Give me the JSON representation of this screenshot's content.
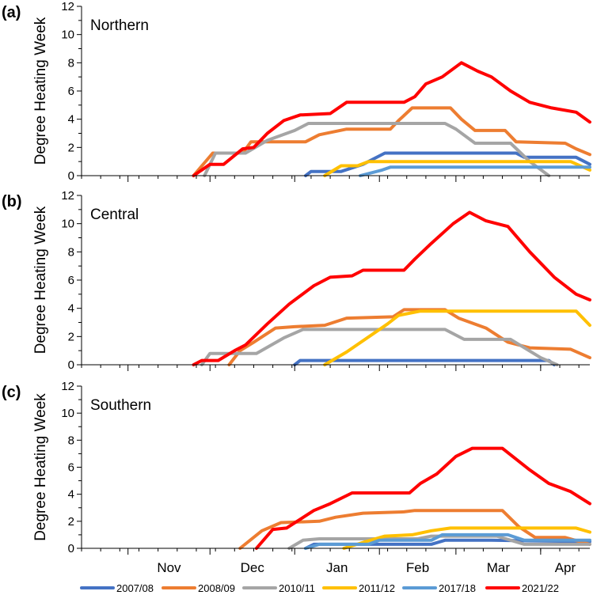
{
  "legend": [
    {
      "name": "2007/08",
      "color": "#4472C4"
    },
    {
      "name": "2008/09",
      "color": "#ED7D31"
    },
    {
      "name": "2010/11",
      "color": "#A5A5A5"
    },
    {
      "name": "2011/12",
      "color": "#FFC000"
    },
    {
      "name": "2017/18",
      "color": "#5B9BD5"
    },
    {
      "name": "2021/22",
      "color": "#FF0000"
    }
  ],
  "x_month_labels": [
    "Nov",
    "Dec",
    "Jan",
    "Feb",
    "Mar",
    "Apr"
  ],
  "chart_data": [
    {
      "type": "line",
      "panel_letter": "(a)",
      "region": "Northern",
      "ylabel": "Degree Heating Week",
      "ylim": [
        0,
        12
      ],
      "y_ticks": [
        0,
        2,
        4,
        6,
        8,
        10,
        12
      ],
      "x_range": [
        "Oct 15",
        "Apr 19"
      ],
      "series": [
        {
          "name": "2007/08",
          "color": "#4472C4",
          "points": [
            [
              "Jan 05",
              0
            ],
            [
              "Jan 07",
              0.3
            ],
            [
              "Jan 18",
              0.3
            ],
            [
              "Jan 26",
              0.8
            ],
            [
              "Feb 03",
              1.6
            ],
            [
              "Mar 23",
              1.6
            ],
            [
              "Mar 26",
              1.3
            ],
            [
              "Apr 14",
              1.3
            ],
            [
              "Apr 19",
              0.8
            ]
          ]
        },
        {
          "name": "2008/09",
          "color": "#ED7D31",
          "points": [
            [
              "Nov 25",
              0
            ],
            [
              "Dec 02",
              1.6
            ],
            [
              "Dec 13",
              1.6
            ],
            [
              "Dec 16",
              2.4
            ],
            [
              "Jan 05",
              2.4
            ],
            [
              "Jan 10",
              2.9
            ],
            [
              "Jan 20",
              3.3
            ],
            [
              "Feb 05",
              3.3
            ],
            [
              "Feb 08",
              3.9
            ],
            [
              "Feb 13",
              4.8
            ],
            [
              "Feb 27",
              4.8
            ],
            [
              "Mar 03",
              4.0
            ],
            [
              "Mar 08",
              3.2
            ],
            [
              "Mar 19",
              3.2
            ],
            [
              "Mar 23",
              2.4
            ],
            [
              "Apr 10",
              2.3
            ],
            [
              "Apr 14",
              1.9
            ],
            [
              "Apr 19",
              1.5
            ]
          ]
        },
        {
          "name": "2010/11",
          "color": "#A5A5A5",
          "points": [
            [
              "Nov 29",
              0
            ],
            [
              "Dec 03",
              1.6
            ],
            [
              "Dec 14",
              1.6
            ],
            [
              "Dec 22",
              2.5
            ],
            [
              "Jan 01",
              3.2
            ],
            [
              "Jan 06",
              3.7
            ],
            [
              "Feb 18",
              3.7
            ],
            [
              "Feb 25",
              3.7
            ],
            [
              "Mar 01",
              3.3
            ],
            [
              "Mar 08",
              2.3
            ],
            [
              "Mar 21",
              2.3
            ],
            [
              "Mar 28",
              1.0
            ],
            [
              "Apr 04",
              0
            ]
          ]
        },
        {
          "name": "2011/12",
          "color": "#FFC000",
          "points": [
            [
              "Jan 12",
              0
            ],
            [
              "Jan 18",
              0.7
            ],
            [
              "Jan 24",
              0.7
            ],
            [
              "Jan 28",
              1.0
            ],
            [
              "Apr 12",
              1.0
            ],
            [
              "Apr 19",
              0.4
            ]
          ]
        },
        {
          "name": "2017/18",
          "color": "#5B9BD5",
          "points": [
            [
              "Jan 25",
              0
            ],
            [
              "Feb 02",
              0.4
            ],
            [
              "Feb 05",
              0.6
            ],
            [
              "Apr 19",
              0.6
            ]
          ]
        },
        {
          "name": "2021/22",
          "color": "#FF0000",
          "points": [
            [
              "Nov 25",
              0
            ],
            [
              "Dec 01",
              0.8
            ],
            [
              "Dec 06",
              0.8
            ],
            [
              "Dec 13",
              1.9
            ],
            [
              "Dec 17",
              2.0
            ],
            [
              "Dec 22",
              3.0
            ],
            [
              "Dec 28",
              3.9
            ],
            [
              "Jan 03",
              4.3
            ],
            [
              "Jan 14",
              4.4
            ],
            [
              "Jan 20",
              5.2
            ],
            [
              "Feb 10",
              5.2
            ],
            [
              "Feb 14",
              5.6
            ],
            [
              "Feb 18",
              6.5
            ],
            [
              "Feb 24",
              7.0
            ],
            [
              "Mar 03",
              8.0
            ],
            [
              "Mar 09",
              7.4
            ],
            [
              "Mar 14",
              7.0
            ],
            [
              "Mar 21",
              6.0
            ],
            [
              "Mar 28",
              5.2
            ],
            [
              "Apr 05",
              4.8
            ],
            [
              "Apr 14",
              4.5
            ],
            [
              "Apr 19",
              3.8
            ]
          ]
        }
      ]
    },
    {
      "type": "line",
      "panel_letter": "(b)",
      "region": "Central",
      "ylabel": "Degree Heating Week",
      "ylim": [
        0,
        12
      ],
      "y_ticks": [
        0,
        2,
        4,
        6,
        8,
        10,
        12
      ],
      "x_range": [
        "Oct 15",
        "Apr 19"
      ],
      "series": [
        {
          "name": "2007/08",
          "color": "#4472C4",
          "points": [
            [
              "Jan 01",
              0
            ],
            [
              "Jan 03",
              0.3
            ],
            [
              "Apr 04",
              0.3
            ],
            [
              "Apr 06",
              0
            ]
          ]
        },
        {
          "name": "2008/09",
          "color": "#ED7D31",
          "points": [
            [
              "Dec 08",
              0
            ],
            [
              "Dec 12",
              1.0
            ],
            [
              "Dec 17",
              1.6
            ],
            [
              "Dec 25",
              2.6
            ],
            [
              "Jan 01",
              2.7
            ],
            [
              "Jan 12",
              2.8
            ],
            [
              "Jan 20",
              3.3
            ],
            [
              "Feb 06",
              3.4
            ],
            [
              "Feb 10",
              3.9
            ],
            [
              "Feb 25",
              3.9
            ],
            [
              "Mar 02",
              3.3
            ],
            [
              "Mar 12",
              2.6
            ],
            [
              "Mar 20",
              1.6
            ],
            [
              "Mar 28",
              1.2
            ],
            [
              "Apr 12",
              1.1
            ],
            [
              "Apr 19",
              0.5
            ]
          ]
        },
        {
          "name": "2010/11",
          "color": "#A5A5A5",
          "points": [
            [
              "Nov 28",
              0
            ],
            [
              "Dec 01",
              0.8
            ],
            [
              "Dec 18",
              0.8
            ],
            [
              "Dec 28",
              1.9
            ],
            [
              "Jan 04",
              2.5
            ],
            [
              "Feb 25",
              2.5
            ],
            [
              "Mar 04",
              1.8
            ],
            [
              "Mar 21",
              1.8
            ],
            [
              "Apr 01",
              0.5
            ],
            [
              "Apr 07",
              0
            ]
          ]
        },
        {
          "name": "2011/12",
          "color": "#FFC000",
          "points": [
            [
              "Jan 12",
              0
            ],
            [
              "Jan 20",
              0.9
            ],
            [
              "Feb 04",
              2.9
            ],
            [
              "Feb 08",
              3.5
            ],
            [
              "Feb 16",
              3.8
            ],
            [
              "Feb 27",
              3.8
            ],
            [
              "Apr 14",
              3.8
            ],
            [
              "Apr 19",
              2.8
            ]
          ]
        },
        {
          "name": "2021/22",
          "color": "#FF0000",
          "points": [
            [
              "Nov 25",
              0
            ],
            [
              "Nov 28",
              0.3
            ],
            [
              "Dec 04",
              0.3
            ],
            [
              "Dec 10",
              1.0
            ],
            [
              "Dec 14",
              1.4
            ],
            [
              "Dec 22",
              2.9
            ],
            [
              "Dec 30",
              4.3
            ],
            [
              "Jan 08",
              5.6
            ],
            [
              "Jan 14",
              6.2
            ],
            [
              "Jan 22",
              6.3
            ],
            [
              "Jan 26",
              6.7
            ],
            [
              "Feb 10",
              6.7
            ],
            [
              "Feb 14",
              7.5
            ],
            [
              "Feb 20",
              8.6
            ],
            [
              "Feb 28",
              10.0
            ],
            [
              "Mar 06",
              10.8
            ],
            [
              "Mar 12",
              10.2
            ],
            [
              "Mar 20",
              9.8
            ],
            [
              "Mar 28",
              8.0
            ],
            [
              "Apr 06",
              6.2
            ],
            [
              "Apr 14",
              5.0
            ],
            [
              "Apr 19",
              4.6
            ]
          ]
        }
      ]
    },
    {
      "type": "line",
      "panel_letter": "(c)",
      "region": "Southern",
      "ylabel": "Degree Heating Week",
      "ylim": [
        0,
        12
      ],
      "y_ticks": [
        0,
        2,
        4,
        6,
        8,
        10,
        12
      ],
      "x_range": [
        "Oct 15",
        "Apr 19"
      ],
      "series": [
        {
          "name": "2007/08",
          "color": "#4472C4",
          "points": [
            [
              "Jan 05",
              0
            ],
            [
              "Jan 08",
              0.3
            ],
            [
              "Feb 20",
              0.3
            ],
            [
              "Feb 25",
              0.6
            ],
            [
              "Mar 14",
              0.6
            ],
            [
              "Apr 19",
              0.5
            ]
          ]
        },
        {
          "name": "2008/09",
          "color": "#ED7D31",
          "points": [
            [
              "Dec 12",
              0
            ],
            [
              "Dec 20",
              1.3
            ],
            [
              "Dec 27",
              1.9
            ],
            [
              "Jan 10",
              2.0
            ],
            [
              "Jan 16",
              2.3
            ],
            [
              "Jan 26",
              2.6
            ],
            [
              "Feb 10",
              2.7
            ],
            [
              "Feb 14",
              2.8
            ],
            [
              "Mar 18",
              2.8
            ],
            [
              "Mar 24",
              1.6
            ],
            [
              "Mar 30",
              0.8
            ],
            [
              "Apr 10",
              0.8
            ],
            [
              "Apr 19",
              0.3
            ]
          ]
        },
        {
          "name": "2010/11",
          "color": "#A5A5A5",
          "points": [
            [
              "Dec 30",
              0
            ],
            [
              "Jan 04",
              0.6
            ],
            [
              "Jan 10",
              0.7
            ],
            [
              "Feb 15",
              0.7
            ],
            [
              "Feb 20",
              0.9
            ],
            [
              "Mar 16",
              0.9
            ],
            [
              "Mar 26",
              0.3
            ],
            [
              "Apr 19",
              0.3
            ]
          ]
        },
        {
          "name": "2011/12",
          "color": "#FFC000",
          "points": [
            [
              "Jan 19",
              0
            ],
            [
              "Jan 27",
              0.5
            ],
            [
              "Feb 03",
              0.9
            ],
            [
              "Feb 13",
              1.0
            ],
            [
              "Feb 20",
              1.3
            ],
            [
              "Feb 27",
              1.5
            ],
            [
              "Apr 14",
              1.5
            ],
            [
              "Apr 19",
              1.2
            ]
          ]
        },
        {
          "name": "2017/18",
          "color": "#5B9BD5",
          "points": [
            [
              "Jan 05",
              0
            ],
            [
              "Jan 10",
              0.3
            ],
            [
              "Jan 28",
              0.3
            ],
            [
              "Feb 01",
              0.6
            ],
            [
              "Feb 20",
              0.6
            ],
            [
              "Feb 24",
              1.0
            ],
            [
              "Mar 20",
              1.0
            ],
            [
              "Mar 26",
              0.6
            ],
            [
              "Apr 19",
              0.6
            ]
          ]
        },
        {
          "name": "2021/22",
          "color": "#FF0000",
          "points": [
            [
              "Dec 18",
              0
            ],
            [
              "Dec 24",
              1.4
            ],
            [
              "Dec 29",
              1.5
            ],
            [
              "Jan 08",
              2.8
            ],
            [
              "Jan 14",
              3.3
            ],
            [
              "Jan 22",
              4.1
            ],
            [
              "Feb 12",
              4.1
            ],
            [
              "Feb 16",
              4.8
            ],
            [
              "Feb 22",
              5.5
            ],
            [
              "Mar 01",
              6.8
            ],
            [
              "Mar 07",
              7.4
            ],
            [
              "Mar 18",
              7.4
            ],
            [
              "Mar 28",
              5.8
            ],
            [
              "Apr 04",
              4.8
            ],
            [
              "Apr 12",
              4.2
            ],
            [
              "Apr 19",
              3.3
            ]
          ]
        }
      ]
    }
  ]
}
